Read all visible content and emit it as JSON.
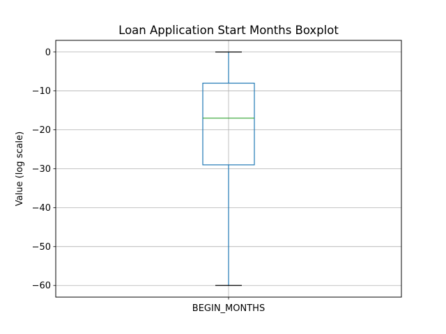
{
  "chart_data": {
    "type": "box",
    "title": "Loan Application Start Months Boxplot",
    "xlabel": "",
    "ylabel": "Value (log scale)",
    "categories": [
      "BEGIN_MONTHS"
    ],
    "ylim": [
      -63,
      3
    ],
    "yticks": [
      0,
      -10,
      -20,
      -30,
      -40,
      -50,
      -60
    ],
    "ytick_labels": [
      "0",
      "−10",
      "−20",
      "−30",
      "−40",
      "−50",
      "−60"
    ],
    "grid": true,
    "boxes": [
      {
        "name": "BEGIN_MONTHS",
        "whisker_low": -60,
        "q1": -29,
        "median": -17,
        "q3": -8,
        "whisker_high": 0
      }
    ],
    "colors": {
      "box": "#1f77b4",
      "median": "#2ca02c",
      "cap": "#000000",
      "grid": "#b0b0b0"
    }
  }
}
